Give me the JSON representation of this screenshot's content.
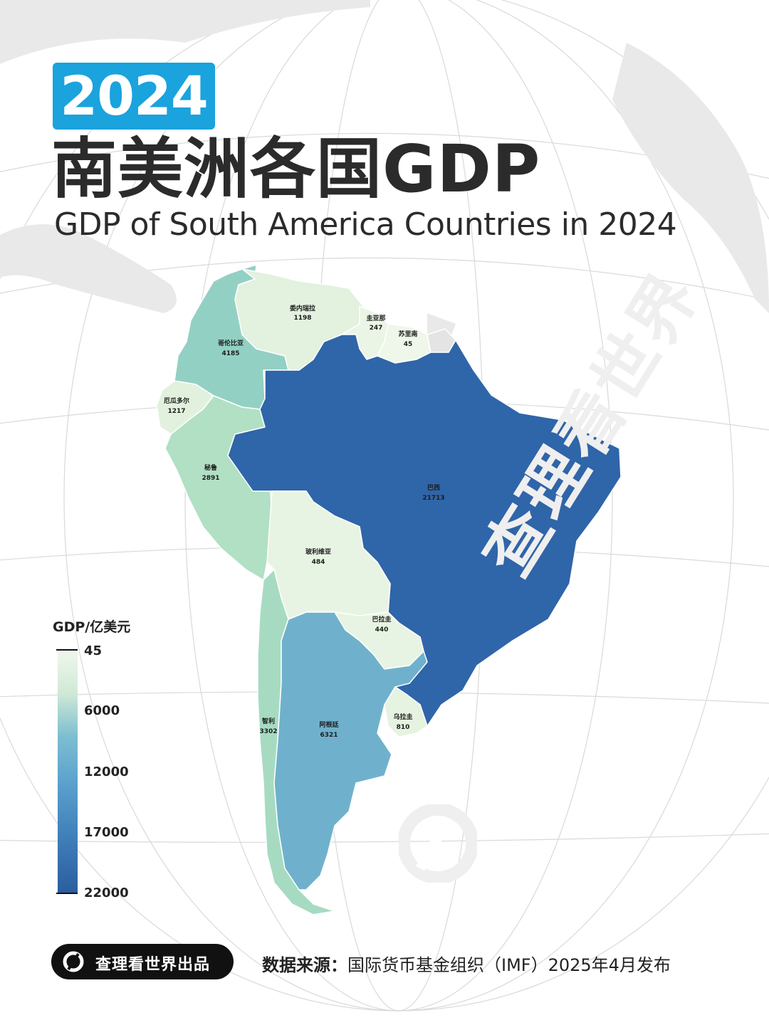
{
  "header": {
    "year_badge": "2024",
    "title_zh": "南美洲各国GDP",
    "title_en": "GDP of South America Countries in 2024"
  },
  "legend": {
    "title": "GDP/亿美元",
    "ticks": [
      "45",
      "6000",
      "12000",
      "17000",
      "22000"
    ],
    "range": [
      45,
      22000
    ],
    "colors": [
      "#f1f7ee",
      "#cfe9d6",
      "#7fbfd1",
      "#5aa1cd",
      "#3f7db8",
      "#2a5d9f"
    ]
  },
  "countries": [
    {
      "name": "委内瑞拉",
      "gdp": "1198",
      "color": "#e3f1df"
    },
    {
      "name": "圭亚那",
      "gdp": "247",
      "color": "#eaf5e6"
    },
    {
      "name": "苏里南",
      "gdp": "45",
      "color": "#eef7ea"
    },
    {
      "name": "哥伦比亚",
      "gdp": "4185",
      "color": "#93d0c4"
    },
    {
      "name": "厄瓜多尔",
      "gdp": "1217",
      "color": "#e2f1de"
    },
    {
      "name": "秘鲁",
      "gdp": "2891",
      "color": "#b1e0c5"
    },
    {
      "name": "巴西",
      "gdp": "21713",
      "color": "#2f65a9"
    },
    {
      "name": "玻利维亚",
      "gdp": "484",
      "color": "#e8f4e3"
    },
    {
      "name": "巴拉圭",
      "gdp": "440",
      "color": "#e8f4e3"
    },
    {
      "name": "智利",
      "gdp": "3302",
      "color": "#a6dbc2"
    },
    {
      "name": "阿根廷",
      "gdp": "6321",
      "color": "#6fb1cc"
    },
    {
      "name": "乌拉圭",
      "gdp": "810",
      "color": "#e5f3e0"
    }
  ],
  "watermark": "查理看世界",
  "footer": {
    "brand": "查理看世界出品",
    "source_label": "数据来源：",
    "source_text": "国际货币基金组织（IMF）2025年4月发布"
  }
}
